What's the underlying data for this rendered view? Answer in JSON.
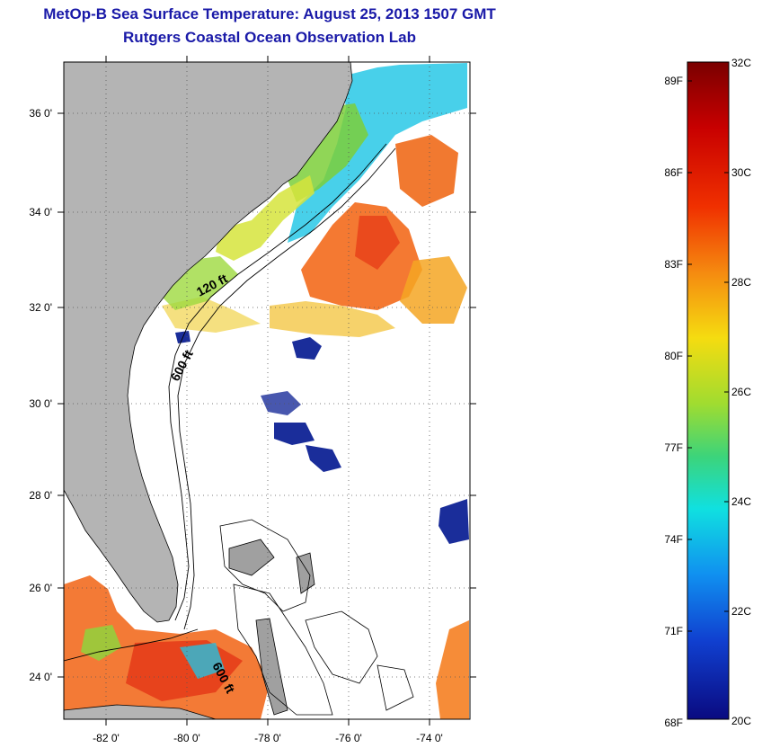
{
  "header": {
    "title": "MetOp-B Sea Surface Temperature:  August 25, 2013 1507 GMT",
    "subtitle": "Rutgers Coastal Ocean Observation Lab"
  },
  "map": {
    "lat_labels": [
      "36 0'",
      "34 0'",
      "32 0'",
      "30 0'",
      "28 0'",
      "26 0'",
      "24 0'"
    ],
    "lon_labels": [
      "-82 0'",
      "-80 0'",
      "-78 0'",
      "-76 0'",
      "-74 0'"
    ],
    "lat_range": [
      23,
      37
    ],
    "lon_range": [
      -83,
      -73
    ],
    "isobath_labels": [
      "120 ft",
      "600 ft",
      "600 ft"
    ],
    "colors": {
      "land": "#b4b4b4",
      "ocean": "#ffffff",
      "grid": "#555555"
    }
  },
  "colorbar": {
    "f_labels": [
      "89F",
      "86F",
      "83F",
      "80F",
      "77F",
      "74F",
      "71F",
      "68F"
    ],
    "c_labels": [
      "32C",
      "30C",
      "28C",
      "26C",
      "24C",
      "22C",
      "20C"
    ],
    "range_c": [
      20,
      32
    ]
  }
}
